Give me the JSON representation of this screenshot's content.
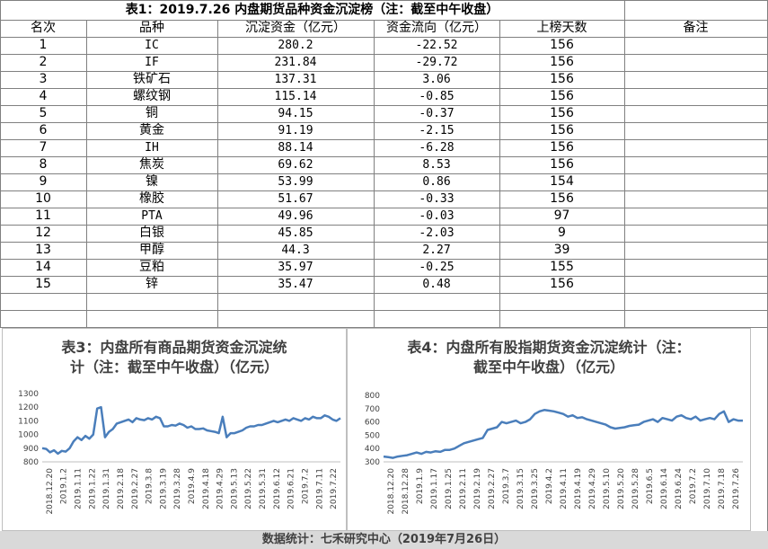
{
  "table": {
    "title": "表1：2019.7.26 内盘期货品种资金沉淀榜（注：截至中午收盘）",
    "headers": [
      "名次",
      "品种",
      "沉淀资金（亿元）",
      "资金流向（亿元）",
      "上榜天数",
      "备注"
    ],
    "rows": [
      [
        "1",
        "IC",
        "280.2",
        "-22.52",
        "156",
        ""
      ],
      [
        "2",
        "IF",
        "231.84",
        "-29.72",
        "156",
        ""
      ],
      [
        "3",
        "铁矿石",
        "137.31",
        "3.06",
        "156",
        ""
      ],
      [
        "4",
        "螺纹钢",
        "115.14",
        "-0.85",
        "156",
        ""
      ],
      [
        "5",
        "铜",
        "94.15",
        "-0.37",
        "156",
        ""
      ],
      [
        "6",
        "黄金",
        "91.19",
        "-2.15",
        "156",
        ""
      ],
      [
        "7",
        "IH",
        "88.14",
        "-6.28",
        "156",
        ""
      ],
      [
        "8",
        "焦炭",
        "69.62",
        "8.53",
        "156",
        ""
      ],
      [
        "9",
        "镍",
        "53.99",
        "0.86",
        "154",
        ""
      ],
      [
        "10",
        "橡胶",
        "51.67",
        "-0.33",
        "156",
        ""
      ],
      [
        "11",
        "PTA",
        "49.96",
        "-0.03",
        "97",
        ""
      ],
      [
        "12",
        "白银",
        "45.85",
        "-2.03",
        "9",
        ""
      ],
      [
        "13",
        "甲醇",
        "44.3",
        "2.27",
        "39",
        ""
      ],
      [
        "14",
        "豆粕",
        "35.97",
        "-0.25",
        "155",
        ""
      ],
      [
        "15",
        "锌",
        "35.47",
        "0.48",
        "156",
        ""
      ]
    ]
  },
  "chart_data": [
    {
      "type": "line",
      "title": "表3：内盘所有商品期货资金沉淀统计（注：截至中午收盘）（亿元）",
      "title_lines": [
        "表3：内盘所有商品期货资金沉淀统",
        "计（注：截至中午收盘）（亿元）"
      ],
      "ylim": [
        800,
        1300
      ],
      "yticks": [
        "800",
        "900",
        "1000",
        "1100",
        "1200",
        "1300"
      ],
      "xticks": [
        "2018.12.20",
        "2019.1.2",
        "2019.1.11",
        "2019.1.22",
        "2019.1.31",
        "2019.2.18",
        "2019.2.27",
        "2019.3.8",
        "2019.3.19",
        "2019.3.28",
        "2019.4.9",
        "2019.4.18",
        "2019.4.29",
        "2019.5.13",
        "2019.5.22",
        "2019.5.31",
        "2019.6.12",
        "2019.6.21",
        "2019.7.2",
        "2019.7.11",
        "2019.7.22"
      ],
      "grid": false,
      "line_color": "#4a7ebb",
      "series": [
        {
          "values": [
            900,
            895,
            870,
            885,
            860,
            880,
            875,
            900,
            950,
            980,
            960,
            990,
            970,
            1000,
            1190,
            1200,
            980,
            1020,
            1040,
            1080,
            1090,
            1100,
            1110,
            1090,
            1120,
            1110,
            1105,
            1120,
            1110,
            1130,
            1120,
            1060,
            1060,
            1070,
            1065,
            1080,
            1070,
            1050,
            1060,
            1040,
            1040,
            1045,
            1030,
            1025,
            1020,
            1010,
            1130,
            980,
            1010,
            1010,
            1020,
            1030,
            1050,
            1060,
            1060,
            1070,
            1070,
            1080,
            1090,
            1100,
            1090,
            1100,
            1110,
            1100,
            1120,
            1110,
            1100,
            1120,
            1110,
            1130,
            1120,
            1120,
            1140,
            1130,
            1110,
            1100,
            1120
          ]
        }
      ]
    },
    {
      "type": "line",
      "title": "表4：内盘所有股指期货资金沉淀统计（注：截至中午收盘）（亿元）",
      "title_lines": [
        "表4：内盘所有股指期货资金沉淀统计（注：",
        "截至中午收盘）（亿元）"
      ],
      "ylim": [
        300,
        800
      ],
      "yticks": [
        "300",
        "400",
        "500",
        "600",
        "700",
        "800"
      ],
      "xticks": [
        "2018.12.20",
        "2018.12.28",
        "2019.1.9",
        "2019.1.17",
        "2019.1.25",
        "2019.2.11",
        "2019.2.19",
        "2019.2.27",
        "2019.3.7",
        "2019.3.15",
        "2019.3.25",
        "2019.4.2",
        "2019.4.11",
        "2019.4.19",
        "2019.4.29",
        "2019.5.10",
        "2019.5.20",
        "2019.5.28",
        "2019.6.5",
        "2019.6.14",
        "2019.6.24",
        "2019.7.2",
        "2019.7.10",
        "2019.7.18",
        "2019.7.26"
      ],
      "grid": false,
      "line_color": "#4a7ebb",
      "series": [
        {
          "values": [
            340,
            335,
            330,
            340,
            345,
            350,
            360,
            370,
            360,
            375,
            370,
            380,
            375,
            390,
            390,
            400,
            420,
            440,
            450,
            460,
            470,
            480,
            540,
            550,
            560,
            600,
            590,
            600,
            610,
            590,
            600,
            620,
            660,
            680,
            690,
            685,
            680,
            670,
            660,
            640,
            650,
            630,
            635,
            620,
            610,
            600,
            590,
            580,
            560,
            550,
            555,
            560,
            570,
            575,
            580,
            600,
            610,
            620,
            600,
            630,
            620,
            610,
            640,
            650,
            630,
            620,
            640,
            610,
            620,
            630,
            620,
            660,
            680,
            600,
            620,
            610,
            610
          ]
        }
      ]
    }
  ],
  "footer": "数据统计：七禾研究中心（2019年7月26日）"
}
